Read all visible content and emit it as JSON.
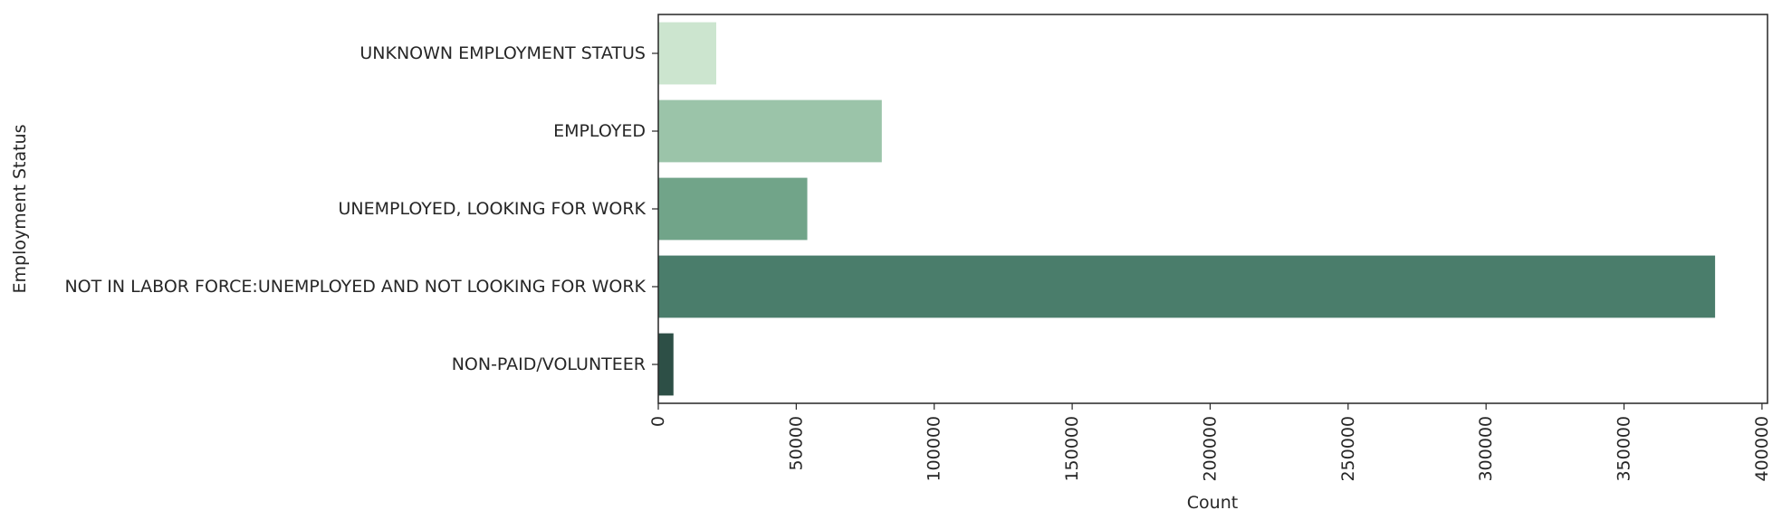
{
  "chart_data": {
    "type": "bar",
    "orientation": "horizontal",
    "categories": [
      "UNKNOWN EMPLOYMENT STATUS",
      "EMPLOYED",
      "UNEMPLOYED, LOOKING FOR WORK",
      "NOT IN LABOR FORCE:UNEMPLOYED AND NOT LOOKING FOR WORK",
      "NON-PAID/VOLUNTEER"
    ],
    "values": [
      21000,
      81000,
      54000,
      383000,
      5500
    ],
    "colors": [
      "#cce5cf",
      "#9bc4a9",
      "#71a489",
      "#4a7d6b",
      "#2d4f46"
    ],
    "xlabel": "Count",
    "ylabel": "Employment Status",
    "xlim": [
      0,
      402000
    ],
    "xticks": [
      0,
      50000,
      100000,
      150000,
      200000,
      250000,
      300000,
      350000,
      400000
    ],
    "xtick_labels": [
      "0",
      "50000",
      "100000",
      "150000",
      "200000",
      "250000",
      "300000",
      "350000",
      "400000"
    ],
    "grid": false
  }
}
